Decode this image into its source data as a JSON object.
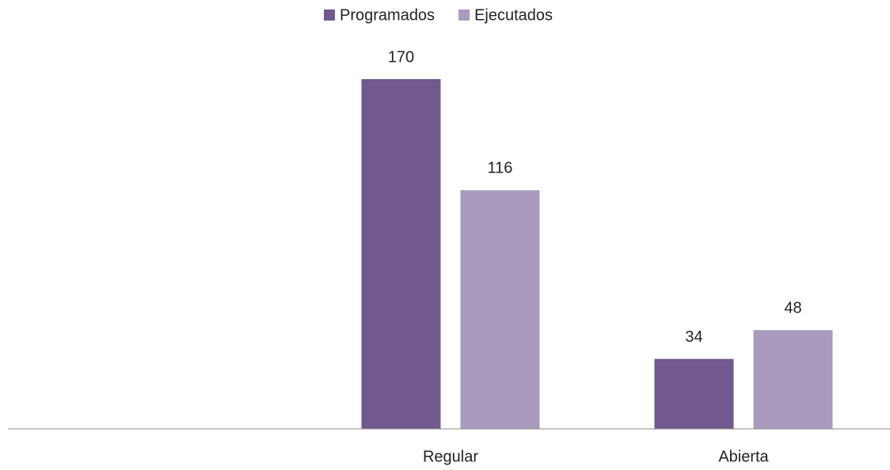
{
  "chart_data": {
    "type": "bar",
    "categories": [
      null,
      "Regular",
      "Abierta"
    ],
    "series": [
      {
        "name": "Programados",
        "color": "#71588f",
        "values": [
          null,
          170,
          34
        ]
      },
      {
        "name": "Ejecutados",
        "color": "#a99bbd",
        "values": [
          null,
          116,
          48
        ]
      }
    ],
    "ylim": [
      0,
      170
    ],
    "legend": "top"
  }
}
